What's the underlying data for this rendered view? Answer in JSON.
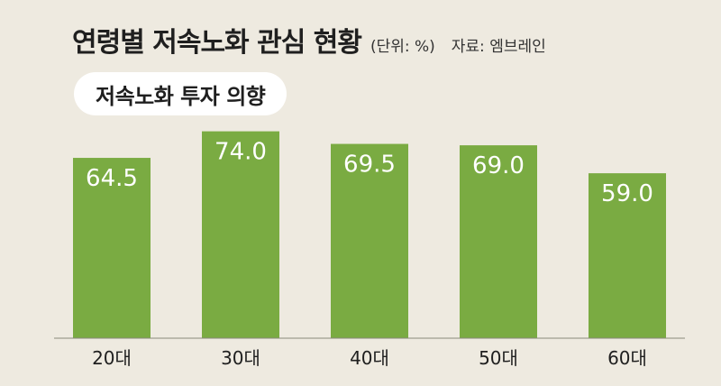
{
  "header": {
    "title": "연령별 저속노화 관심 현황",
    "unit": "(단위: %)",
    "source": "자료: 엠브레인"
  },
  "colors": {
    "background": "#eeeae0",
    "bar": "#7aab42",
    "axis_line": "#8a8a7a"
  },
  "chart_data": {
    "type": "bar",
    "title": "저속노화 투자 의향",
    "categories": [
      "20대",
      "30대",
      "40대",
      "50대",
      "60대"
    ],
    "values": [
      64.5,
      74.0,
      69.5,
      69.0,
      59.0
    ],
    "value_labels": [
      "64.5",
      "74.0",
      "69.5",
      "69.0",
      "59.0"
    ],
    "xlabel": "",
    "ylabel": "",
    "ylim": [
      0,
      100
    ],
    "grid": false,
    "legend": "none"
  }
}
